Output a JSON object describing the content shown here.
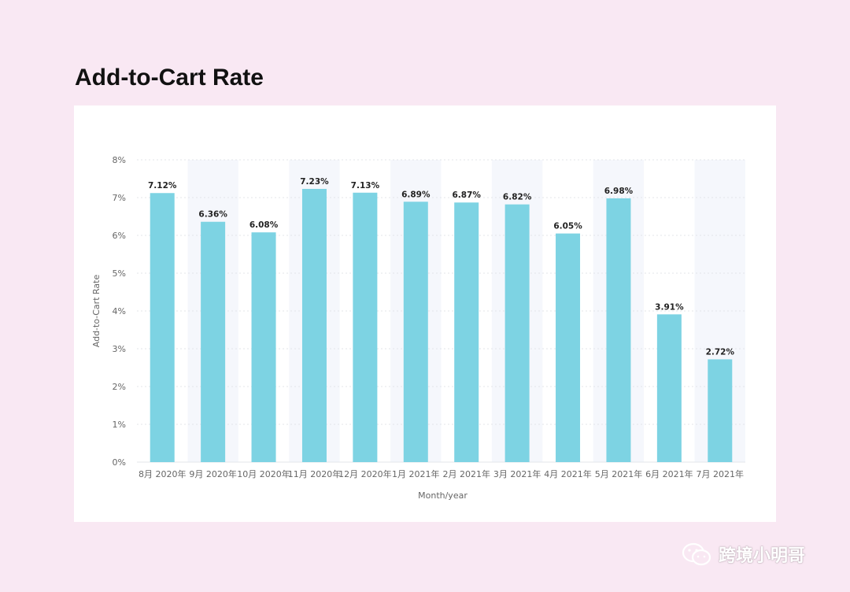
{
  "title": "Add-to-Cart Rate",
  "watermark": "跨境小明哥",
  "colors": {
    "bar": "#7dd3e3",
    "stripe": "#f5f7fc",
    "grid": "#e3e6ea",
    "text": "#666666",
    "label": "#222222"
  },
  "chart_data": {
    "type": "bar",
    "title": "Add-to-Cart Rate",
    "xlabel": "Month/year",
    "ylabel": "Add-to-Cart Rate",
    "ylim": [
      0,
      8
    ],
    "yticks": [
      "0%",
      "1%",
      "2%",
      "3%",
      "4%",
      "5%",
      "6%",
      "7%",
      "8%"
    ],
    "categories": [
      "8月 2020年",
      "9月 2020年",
      "10月 2020年",
      "11月 2020年",
      "12月 2020年",
      "1月 2021年",
      "2月 2021年",
      "3月 2021年",
      "4月 2021年",
      "5月 2021年",
      "6月 2021年",
      "7月 2021年"
    ],
    "values": [
      7.12,
      6.36,
      6.08,
      7.23,
      7.13,
      6.89,
      6.87,
      6.82,
      6.05,
      6.98,
      3.91,
      2.72
    ],
    "data_labels": [
      "7.12%",
      "6.36%",
      "6.08%",
      "7.23%",
      "7.13%",
      "6.89%",
      "6.87%",
      "6.82%",
      "6.05%",
      "6.98%",
      "3.91%",
      "2.72%"
    ],
    "grid": true,
    "legend": "none"
  }
}
